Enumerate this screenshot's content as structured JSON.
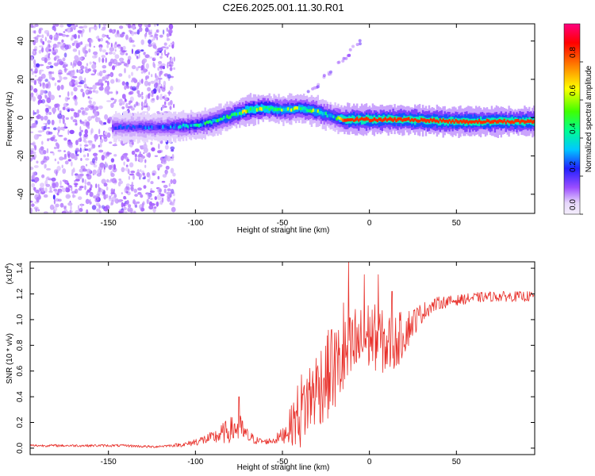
{
  "title": "C2E6.2025.001.11.30.R01",
  "chart_data": [
    {
      "type": "heatmap",
      "xlabel": "Height of straight line (km)",
      "ylabel": "Frequency (Hz)",
      "xlim": [
        -195,
        95
      ],
      "ylim": [
        -50,
        49
      ],
      "xticks": [
        -150,
        -100,
        -50,
        0,
        50
      ],
      "xtick_labels": [
        "-150",
        "-100",
        "-50",
        "0",
        "50"
      ],
      "yticks": [
        -40,
        -20,
        0,
        20,
        40
      ],
      "ytick_labels": [
        "-40",
        "-20",
        "0",
        "20",
        "40"
      ],
      "colorbar": {
        "label": "Normalized spectral amplitude",
        "range": [
          0,
          1
        ],
        "ticks": [
          0.0,
          0.2,
          0.4,
          0.6,
          0.8
        ],
        "tick_labels": [
          "0.0",
          "0.2",
          "0.4",
          "0.6",
          "0.8"
        ],
        "colors": [
          "#f4eefc",
          "#9b4dff",
          "#2020ff",
          "#00c8ff",
          "#00ff90",
          "#40ff00",
          "#ffff00",
          "#ff8000",
          "#ff0000",
          "#ff0080"
        ]
      },
      "ridge": {
        "x": [
          -195,
          -150,
          -120,
          -100,
          -90,
          -80,
          -70,
          -60,
          -50,
          -40,
          -30,
          -20,
          -15,
          0,
          20,
          50,
          95
        ],
        "freq": [
          -4,
          -5,
          -5,
          -4,
          -2,
          1,
          4,
          5,
          4,
          5,
          3,
          0,
          -1,
          -1,
          -1,
          -2,
          -2
        ],
        "peak_amplitude": [
          0.2,
          0.25,
          0.3,
          0.45,
          0.5,
          0.55,
          0.7,
          0.7,
          0.6,
          0.65,
          0.6,
          0.5,
          0.85,
          0.85,
          0.85,
          0.85,
          0.85
        ]
      },
      "noise_region": {
        "x_range": [
          -195,
          -115
        ],
        "amplitude": 0.1
      }
    },
    {
      "type": "line",
      "xlabel": "Height of straight line (km)",
      "ylabel": "SNR (10 * v/v)",
      "scale_label": "(x10",
      "scale_exponent": "4",
      "scale_close": ")",
      "xlim": [
        -195,
        95
      ],
      "ylim": [
        -0.05,
        1.45
      ],
      "xticks": [
        -150,
        -100,
        -50,
        0,
        50
      ],
      "xtick_labels": [
        "-150",
        "-100",
        "-50",
        "0",
        "50"
      ],
      "yticks": [
        0.0,
        0.2,
        0.4,
        0.6,
        0.8,
        1.0,
        1.2,
        1.4
      ],
      "ytick_labels": [
        "0.0",
        "0.2",
        "0.4",
        "0.6",
        "0.8",
        "1.0",
        "1.2",
        "1.4"
      ],
      "color": "#e8302a",
      "series": [
        {
          "name": "SNR",
          "x": [
            -195,
            -180,
            -160,
            -140,
            -125,
            -115,
            -105,
            -100,
            -90,
            -85,
            -80,
            -75,
            -70,
            -65,
            -60,
            -55,
            -50,
            -45,
            -40,
            -35,
            -30,
            -25,
            -20,
            -15,
            -10,
            -5,
            0,
            5,
            10,
            15,
            20,
            25,
            30,
            35,
            40,
            50,
            60,
            70,
            80,
            90,
            95
          ],
          "mean": [
            0.02,
            0.02,
            0.02,
            0.02,
            0.01,
            0.02,
            0.03,
            0.05,
            0.08,
            0.11,
            0.14,
            0.16,
            0.09,
            0.06,
            0.05,
            0.06,
            0.1,
            0.18,
            0.28,
            0.38,
            0.48,
            0.55,
            0.62,
            0.68,
            0.75,
            0.82,
            0.88,
            0.85,
            0.8,
            0.82,
            0.9,
            0.98,
            1.05,
            1.1,
            1.13,
            1.15,
            1.17,
            1.18,
            1.18,
            1.18,
            1.18
          ],
          "spread": [
            0.01,
            0.01,
            0.01,
            0.01,
            0.01,
            0.01,
            0.02,
            0.03,
            0.05,
            0.08,
            0.1,
            0.12,
            0.06,
            0.03,
            0.02,
            0.03,
            0.06,
            0.15,
            0.3,
            0.3,
            0.32,
            0.35,
            0.35,
            0.33,
            0.3,
            0.28,
            0.28,
            0.25,
            0.25,
            0.22,
            0.18,
            0.12,
            0.08,
            0.06,
            0.05,
            0.04,
            0.04,
            0.04,
            0.04,
            0.04,
            0.04
          ],
          "peaks": [
            {
              "x": -75,
              "y": 0.4
            },
            {
              "x": -22,
              "y": 0.92
            },
            {
              "x": -15,
              "y": 1.13
            },
            {
              "x": -12,
              "y": 1.45
            },
            {
              "x": -8,
              "y": 1.08
            },
            {
              "x": -3,
              "y": 1.35
            },
            {
              "x": 5,
              "y": 1.35
            },
            {
              "x": 13,
              "y": 1.22
            }
          ]
        }
      ]
    }
  ]
}
